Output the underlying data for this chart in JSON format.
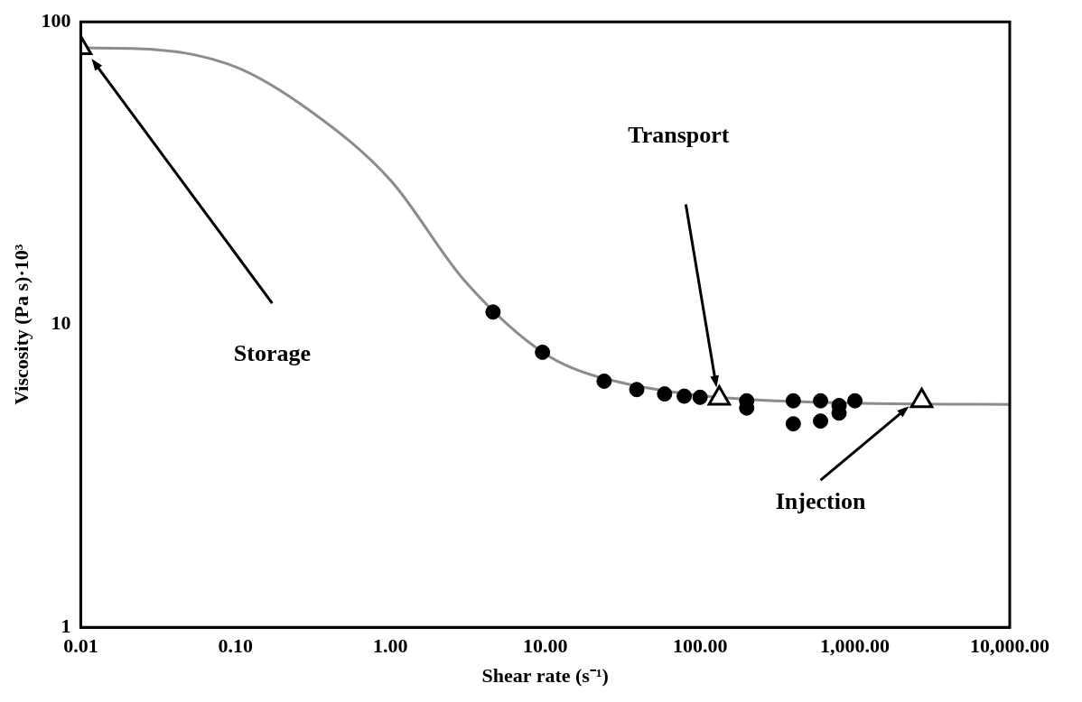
{
  "chart_data": {
    "type": "line",
    "xlabel": "Shear rate (s⁻¹)",
    "ylabel": "Viscosity (Pa s)·10³",
    "log": "xy",
    "grid": false,
    "legend": false,
    "xlim": [
      0.01,
      10000
    ],
    "xticks": [
      {
        "value": 0.01,
        "label": "0.01"
      },
      {
        "value": 0.1,
        "label": "0.10"
      },
      {
        "value": 1,
        "label": "1.00"
      },
      {
        "value": 10,
        "label": "10.00"
      },
      {
        "value": 100,
        "label": "100.00"
      },
      {
        "value": 1000,
        "label": "1,000.00"
      },
      {
        "value": 10000,
        "label": "10,000.00"
      }
    ],
    "ylim": [
      1,
      100
    ],
    "yticks": [
      1,
      10,
      100
    ],
    "series": [
      {
        "type": "line",
        "color": "#8c8c8c",
        "marker": "none",
        "x": [
          0.01,
          0.03,
          0.1,
          0.3,
          1,
          3,
          10,
          25,
          1000,
          10000
        ],
        "values": [
          82,
          81,
          71,
          51,
          30,
          14,
          8,
          6.6,
          5.5,
          5.45
        ]
      },
      {
        "type": "scatter",
        "color": "#000000",
        "marker": "circle",
        "x": [
          4.6,
          9.6,
          24,
          39,
          59,
          79,
          100,
          200,
          200,
          400,
          400,
          600,
          600,
          790,
          790,
          1000
        ],
        "values": [
          11,
          8.1,
          6.5,
          6.1,
          5.9,
          5.8,
          5.75,
          5.6,
          5.3,
          5.6,
          4.7,
          5.6,
          4.8,
          5.4,
          5.1,
          5.6
        ]
      },
      {
        "type": "scatter",
        "color": "#000000",
        "marker": "triangle",
        "x": [
          0.01,
          133,
          2700
        ],
        "values": [
          82,
          5.7,
          5.6
        ]
      }
    ],
    "annotations": [
      "Storage",
      "Transport",
      "Injection"
    ]
  }
}
